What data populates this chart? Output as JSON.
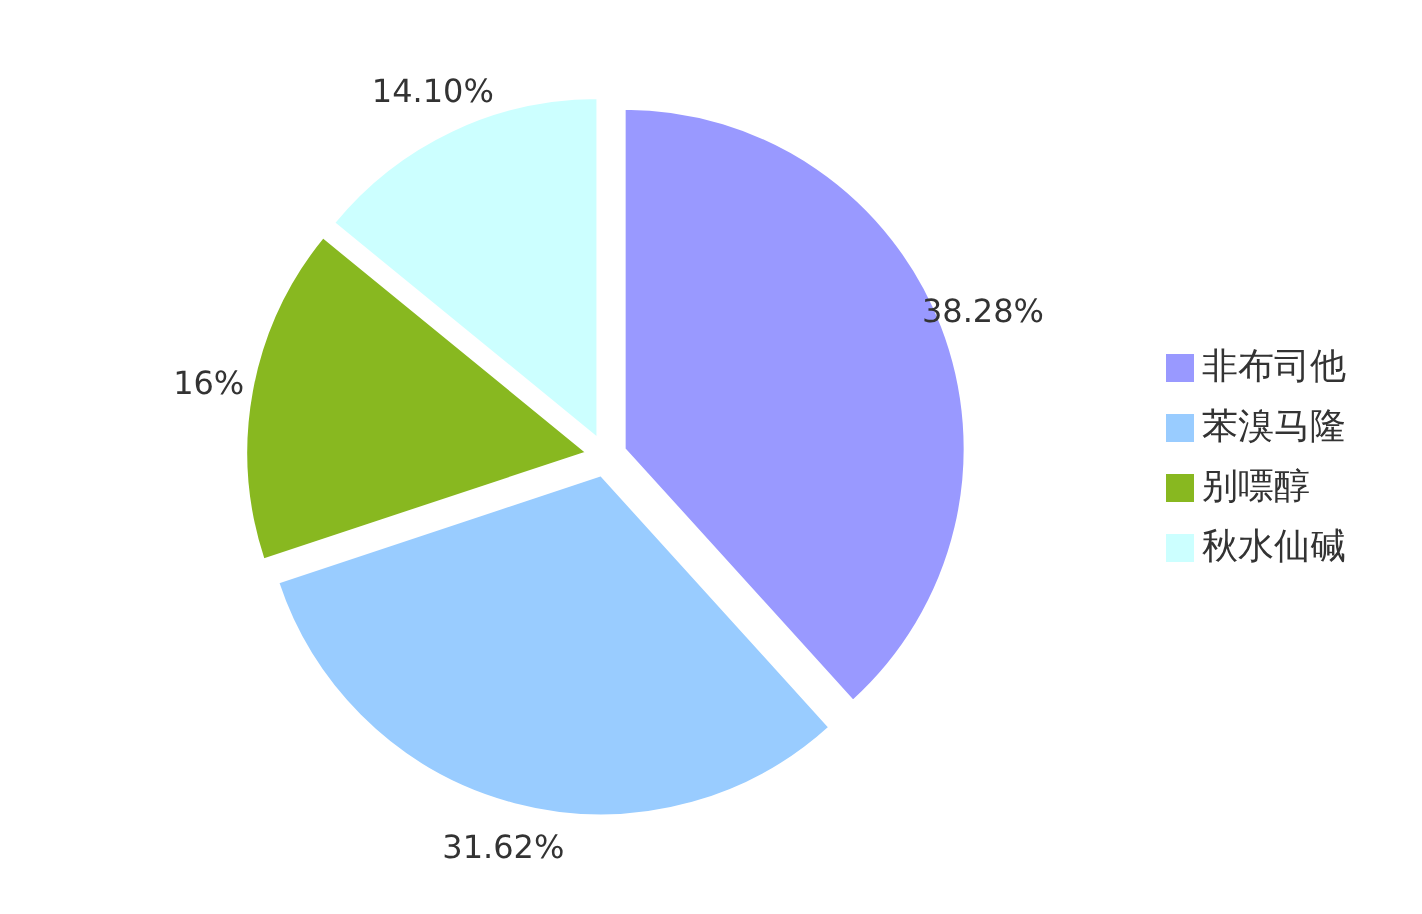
{
  "chart_data": {
    "type": "pie",
    "categories": [
      "非布司他",
      "苯溴马隆",
      "别嘌醇",
      "秋水仙碱"
    ],
    "values": [
      38.28,
      31.62,
      16,
      14.1
    ],
    "colors": [
      "#9999ff",
      "#99ccff",
      "#88b820",
      "#ccffff"
    ],
    "value_labels": [
      "38.28%",
      "31.62%",
      "16%",
      "14.10%"
    ],
    "legend": "right"
  }
}
